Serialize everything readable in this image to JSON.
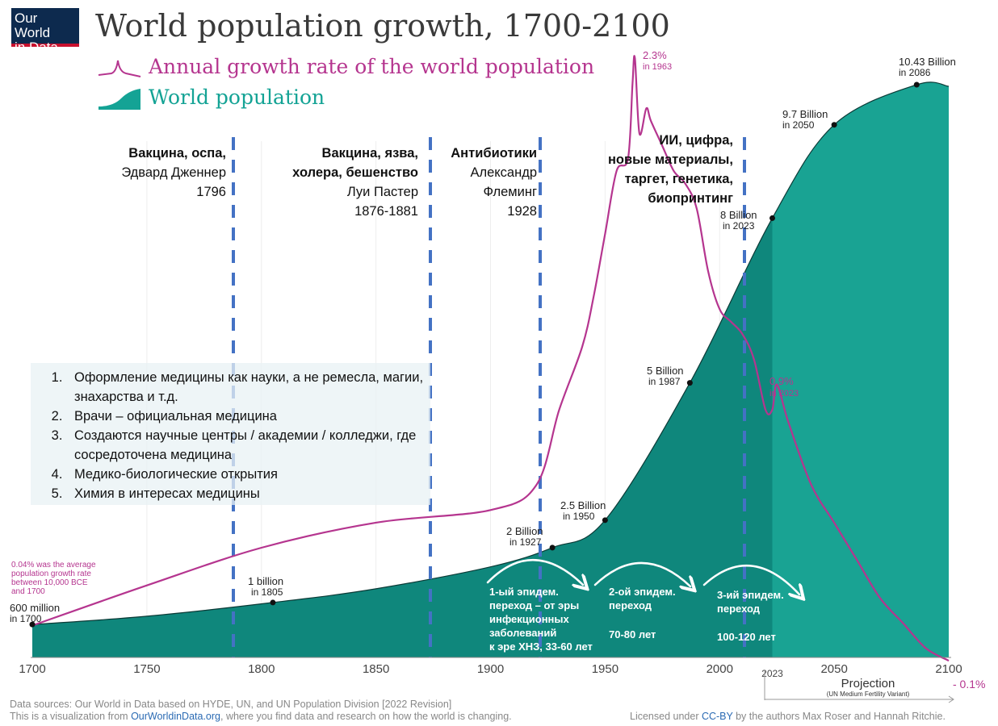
{
  "header": {
    "logo_line1": "Our World",
    "logo_line2": "in Data",
    "title": "World population growth, 1700-2100"
  },
  "colors": {
    "population": "#14a395",
    "population_dark": "#0f877c",
    "growth": "#b5358f",
    "dash": "#4472c4",
    "navy": "#0d2a4e"
  },
  "chart_data": {
    "type": "area",
    "title": "World population growth, 1700-2100",
    "xlim": [
      1700,
      2100
    ],
    "x_ticks": [
      "1700",
      "1750",
      "1800",
      "1850",
      "1900",
      "1950",
      "2000",
      "2023",
      "2050",
      "2100"
    ],
    "series": [
      {
        "name": "World population",
        "unit": "billion",
        "x": [
          1700,
          1750,
          1805,
          1850,
          1900,
          1927,
          1950,
          1987,
          2023,
          2050,
          2086,
          2100
        ],
        "values": [
          0.6,
          0.75,
          1.0,
          1.25,
          1.65,
          2.0,
          2.5,
          5.0,
          8.0,
          9.7,
          10.43,
          10.4
        ]
      },
      {
        "name": "Annual growth rate of the world population",
        "unit": "%",
        "x": [
          1700,
          1750,
          1800,
          1850,
          1900,
          1920,
          1930,
          1940,
          1945,
          1950,
          1955,
          1960,
          1962,
          1963,
          1965,
          1968,
          1970,
          1975,
          1980,
          1985,
          1990,
          1995,
          2000,
          2005,
          2010,
          2015,
          2020,
          2023,
          2025,
          2030,
          2040,
          2050,
          2060,
          2070,
          2080,
          2090,
          2100
        ],
        "values": [
          0.04,
          0.2,
          0.35,
          0.45,
          0.5,
          0.6,
          0.9,
          1.15,
          1.35,
          1.6,
          1.85,
          1.9,
          2.2,
          2.3,
          2.0,
          2.1,
          2.05,
          1.95,
          1.85,
          1.8,
          1.7,
          1.45,
          1.3,
          1.25,
          1.2,
          1.1,
          0.9,
          0.9,
          1.0,
          0.85,
          0.6,
          0.45,
          0.3,
          0.15,
          0.05,
          -0.05,
          -0.1
        ]
      }
    ],
    "legend": [
      "Annual growth rate of the world population",
      "World population"
    ],
    "projection_label": "Projection",
    "projection_sub": "(UN Medium Fertility Variant)",
    "labels": {
      "p1700": {
        "value": "600 million",
        "year": "in 1700"
      },
      "p1805": {
        "value": "1 billion",
        "year": "in 1805"
      },
      "p1927": {
        "value": "2 Billion",
        "year": "in 1927"
      },
      "p1950": {
        "value": "2.5 Billion",
        "year": "in 1950"
      },
      "p1987": {
        "value": "5 Billion",
        "year": "in 1987"
      },
      "p2023": {
        "value": "8 Billion",
        "year": "in 2023"
      },
      "p2050": {
        "value": "9.7 Billion",
        "year": "in 2050"
      },
      "p2086": {
        "value": "10.43 Billion",
        "year": "in 2086"
      },
      "g1963": {
        "value": "2.3%",
        "year": "in 1963"
      },
      "g2023": {
        "value": "0.9%",
        "year": "in 2023"
      },
      "g2100": "- 0.1%",
      "g_note": [
        "0.04% was the average",
        "population growth rate",
        "between 10,000 BCE",
        "and 1700"
      ]
    }
  },
  "annotations": {
    "a1": {
      "bold": "Вакцина, оспа,",
      "l2": "Эдвард Дженнер",
      "l3": "1796"
    },
    "a2": {
      "bold1": "Вакцина, язва,",
      "bold2": "холера, бешенство",
      "l3": "Луи Пастер",
      "l4": "1876-1881"
    },
    "a3": {
      "bold": "Антибиотики",
      "l2": "Александр",
      "l3": "Флеминг",
      "l4": "1928"
    },
    "a4": {
      "l1": "ИИ, цифра,",
      "l2": "новые материалы,",
      "l3": "таргет, генетика,",
      "l4": "биопринтинг"
    }
  },
  "facts": [
    "Оформление медицины как науки, а не ремесла, магии, знахарства и т.д.",
    "Врачи – официальная медицина",
    "Создаются научные центры / академии / колледжи, где сосредоточена медицина",
    "Медико-биологические открытия",
    "Химия в интересах медицины"
  ],
  "epidemic": {
    "e1": {
      "l1": "1-ый эпидем.",
      "l2": "переход – от эры",
      "l3": "инфекционных",
      "l4": "заболеваний",
      "l5": "к эре ХНЗ, 33-60 лет"
    },
    "e2": {
      "l1": "2-ой эпидем.",
      "l2": "переход",
      "yrs": "70-80 лет"
    },
    "e3": {
      "l1": "3-ий эпидем.",
      "l2": "переход",
      "yrs": "100-120 лет"
    }
  },
  "footer": {
    "src1": "Data sources: Our World in Data based on HYDE, UN, and UN Population Division [2022 Revision]",
    "src2a": "This is a visualization from ",
    "src2link": "OurWorldinData.org",
    "src2b": ", where you find data and research on how the world is changing.",
    "lic_a": "Licensed under ",
    "lic_link": "CC-BY",
    "lic_b": " by the authors Max Roser and Hannah Ritchie."
  }
}
